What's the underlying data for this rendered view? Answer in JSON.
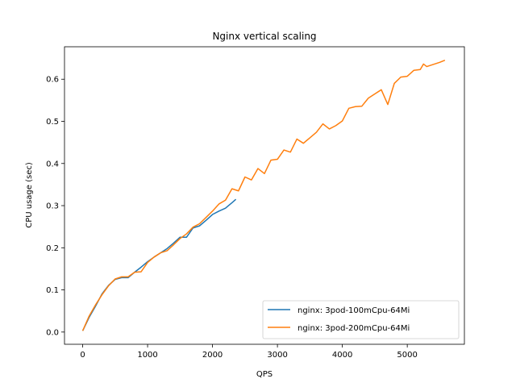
{
  "chart_data": {
    "type": "line",
    "title": "Nginx vertical scaling",
    "xlabel": "QPS",
    "ylabel": "CPU usage (sec)",
    "xlim": [
      -280,
      5880
    ],
    "ylim": [
      -0.029,
      0.677
    ],
    "xticks": [
      0,
      1000,
      2000,
      3000,
      4000,
      5000
    ],
    "xtick_labels": [
      "0",
      "1000",
      "2000",
      "3000",
      "4000",
      "5000"
    ],
    "yticks": [
      0.0,
      0.1,
      0.2,
      0.3,
      0.4,
      0.5,
      0.6
    ],
    "ytick_labels": [
      "0.0",
      "0.1",
      "0.2",
      "0.3",
      "0.4",
      "0.5",
      "0.6"
    ],
    "grid": false,
    "legend_position": "lower-right",
    "series": [
      {
        "name": "nginx: 3pod-100mCpu-64Mi",
        "color": "#1f77b4",
        "x": [
          0,
          100,
          200,
          300,
          400,
          500,
          600,
          700,
          800,
          900,
          1000,
          1100,
          1200,
          1300,
          1400,
          1500,
          1600,
          1700,
          1800,
          1900,
          2000,
          2100,
          2200,
          2300,
          2360
        ],
        "y": [
          0.003,
          0.035,
          0.062,
          0.091,
          0.111,
          0.125,
          0.129,
          0.129,
          0.142,
          0.154,
          0.167,
          0.178,
          0.188,
          0.198,
          0.211,
          0.225,
          0.225,
          0.247,
          0.252,
          0.265,
          0.279,
          0.287,
          0.294,
          0.307,
          0.315
        ]
      },
      {
        "name": "nginx: 3pod-200mCpu-64Mi",
        "color": "#ff7f0e",
        "x": [
          0,
          100,
          200,
          300,
          400,
          500,
          600,
          700,
          800,
          900,
          1000,
          1100,
          1200,
          1300,
          1400,
          1500,
          1600,
          1700,
          1800,
          1900,
          2000,
          2100,
          2200,
          2300,
          2400,
          2500,
          2600,
          2700,
          2800,
          2900,
          3000,
          3100,
          3200,
          3300,
          3400,
          3500,
          3600,
          3700,
          3800,
          3900,
          4000,
          4100,
          4200,
          4300,
          4400,
          4500,
          4600,
          4700,
          4800,
          4900,
          5000,
          5100,
          5200,
          5250,
          5300,
          5400,
          5500,
          5580
        ],
        "y": [
          0.003,
          0.038,
          0.065,
          0.089,
          0.11,
          0.126,
          0.131,
          0.131,
          0.142,
          0.143,
          0.165,
          0.178,
          0.188,
          0.193,
          0.207,
          0.222,
          0.233,
          0.249,
          0.257,
          0.272,
          0.287,
          0.304,
          0.313,
          0.34,
          0.335,
          0.368,
          0.361,
          0.388,
          0.376,
          0.408,
          0.41,
          0.432,
          0.427,
          0.458,
          0.448,
          0.461,
          0.474,
          0.494,
          0.482,
          0.49,
          0.501,
          0.531,
          0.535,
          0.536,
          0.555,
          0.565,
          0.575,
          0.54,
          0.59,
          0.605,
          0.607,
          0.621,
          0.623,
          0.636,
          0.63,
          0.635,
          0.64,
          0.645
        ]
      }
    ]
  }
}
